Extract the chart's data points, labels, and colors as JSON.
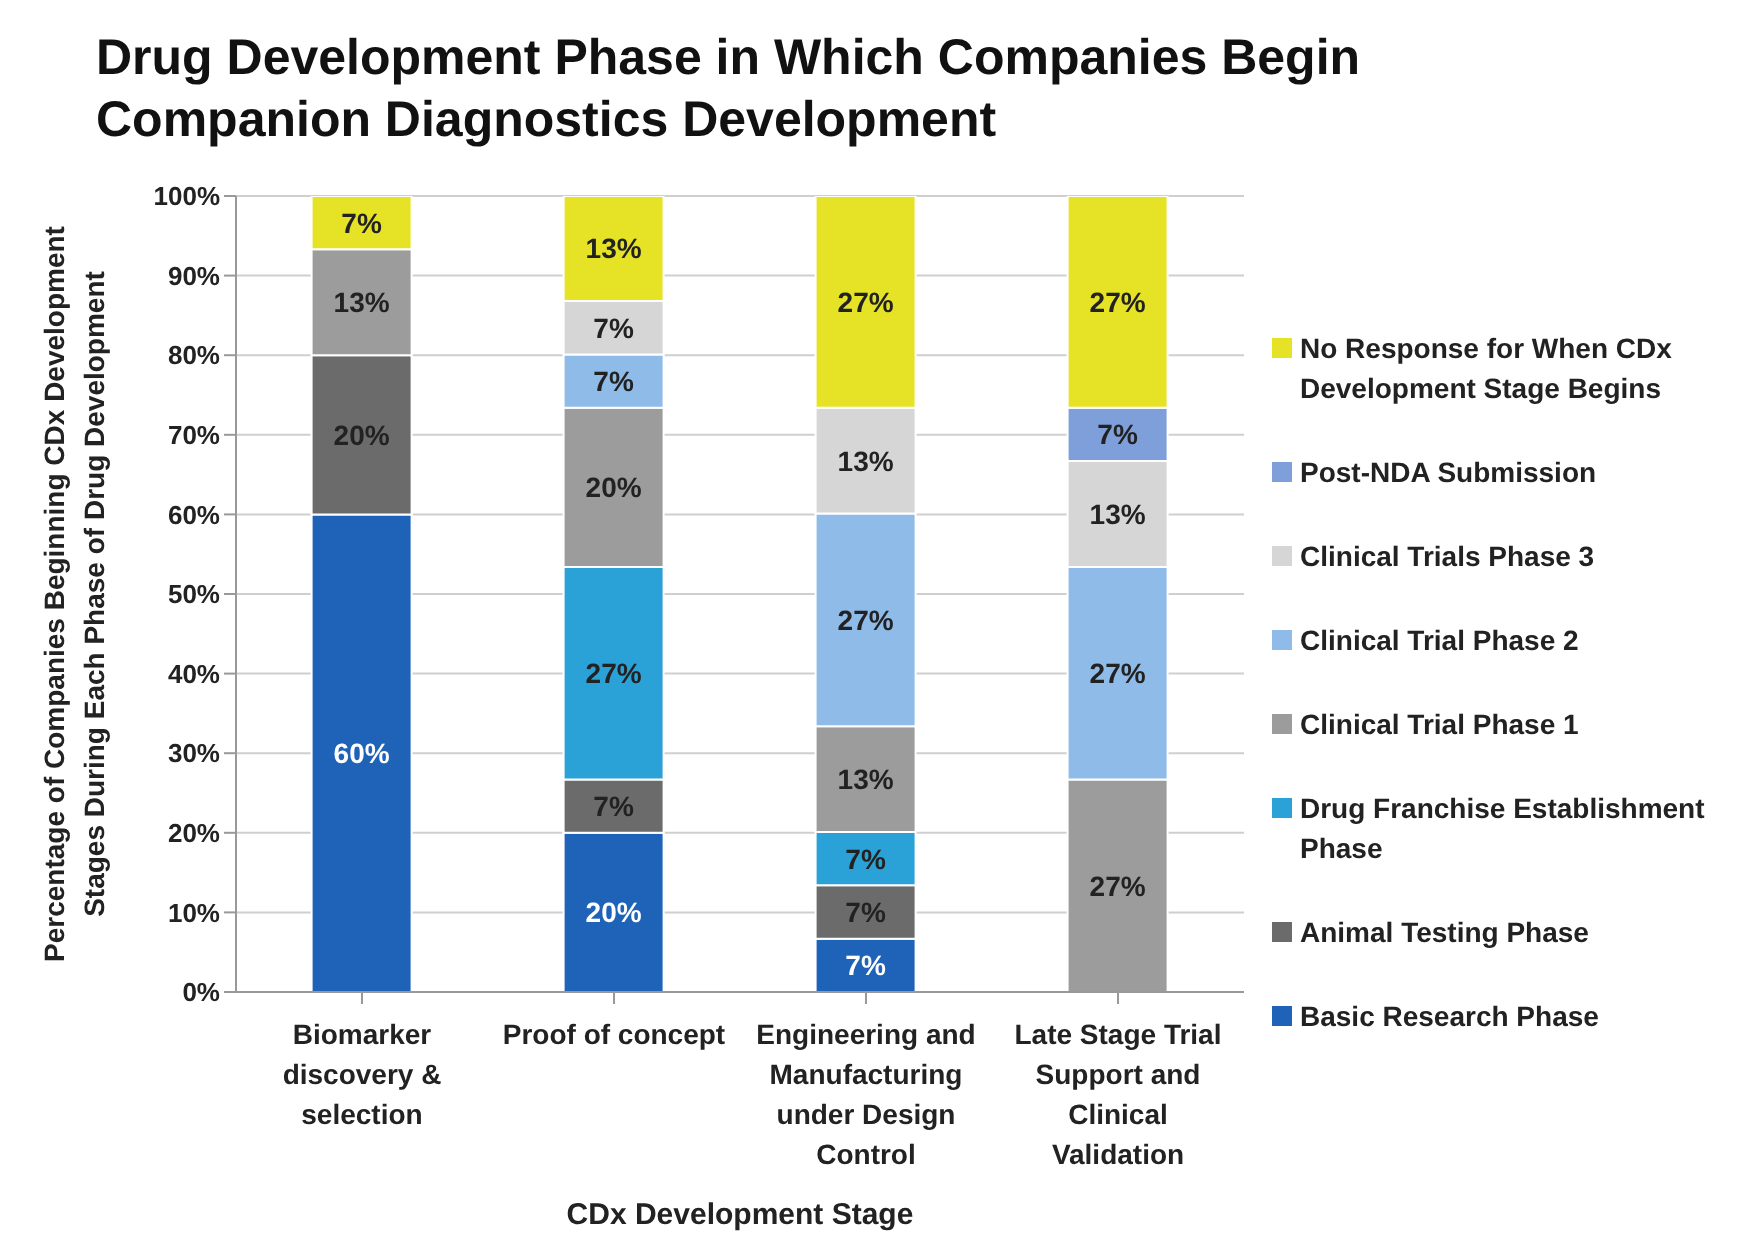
{
  "chart_data": {
    "type": "bar",
    "title": "Drug Development Phase in Which Companies Begin Companion Diagnostics Development",
    "xlabel": "CDx Development Stage",
    "ylabel": "Percentage of Companies Beginning CDx Development Stages During Each Phase of Drug Development",
    "categories": [
      "Biomarker discovery & selection",
      "Proof of concept",
      "Engineering and Manufacturing under Design Control",
      "Late Stage Trial Support and Clinical Validation"
    ],
    "stacked": true,
    "ylim": [
      0,
      100
    ],
    "yticks": [
      {
        "value": 0,
        "label": "0%"
      },
      {
        "value": 10,
        "label": "10%"
      },
      {
        "value": 20,
        "label": "20%"
      },
      {
        "value": 30,
        "label": "30%"
      },
      {
        "value": 40,
        "label": "40%"
      },
      {
        "value": 50,
        "label": "50%"
      },
      {
        "value": 60,
        "label": "60%"
      },
      {
        "value": 70,
        "label": "70%"
      },
      {
        "value": 80,
        "label": "80%"
      },
      {
        "value": 90,
        "label": "90%"
      },
      {
        "value": 100,
        "label": "100%"
      }
    ],
    "grid": "y",
    "legend": "right",
    "series": [
      {
        "name": "Basic Research Phase",
        "color": "#1f63b8",
        "values": [
          60,
          20,
          6.7,
          null
        ],
        "value_labels": [
          "60%",
          "20%",
          "7%",
          null
        ]
      },
      {
        "name": "Animal Testing Phase",
        "color": "#6b6b6b",
        "values": [
          20,
          6.7,
          6.7,
          null
        ],
        "value_labels": [
          "20%",
          "7%",
          "7%",
          null
        ]
      },
      {
        "name": "Drug Franchise Establishment Phase",
        "color": "#2aa2d8",
        "values": [
          null,
          26.7,
          6.7,
          null
        ],
        "value_labels": [
          null,
          "27%",
          "7%",
          null
        ]
      },
      {
        "name": "Clinical Trial Phase 1",
        "color": "#9c9c9c",
        "values": [
          13.3,
          20,
          13.3,
          26.7
        ],
        "value_labels": [
          "13%",
          "20%",
          "13%",
          "27%"
        ]
      },
      {
        "name": "Clinical Trial Phase 2",
        "color": "#8fbbe8",
        "values": [
          null,
          6.7,
          26.7,
          26.7
        ],
        "value_labels": [
          null,
          "7%",
          "27%",
          "27%"
        ]
      },
      {
        "name": "Clinical Trials Phase 3",
        "color": "#d6d6d6",
        "values": [
          null,
          6.7,
          13.3,
          13.3
        ],
        "value_labels": [
          null,
          "7%",
          "13%",
          "13%"
        ]
      },
      {
        "name": "Post-NDA Submission",
        "color": "#7f9fdb",
        "values": [
          null,
          null,
          null,
          6.7
        ],
        "value_labels": [
          null,
          null,
          null,
          "7%"
        ]
      },
      {
        "name": "No Response for When CDx Development Stage Begins",
        "color": "#e6e327",
        "values": [
          6.7,
          13.3,
          26.7,
          26.7
        ],
        "value_labels": [
          "7%",
          "13%",
          "27%",
          "27%"
        ]
      }
    ]
  }
}
